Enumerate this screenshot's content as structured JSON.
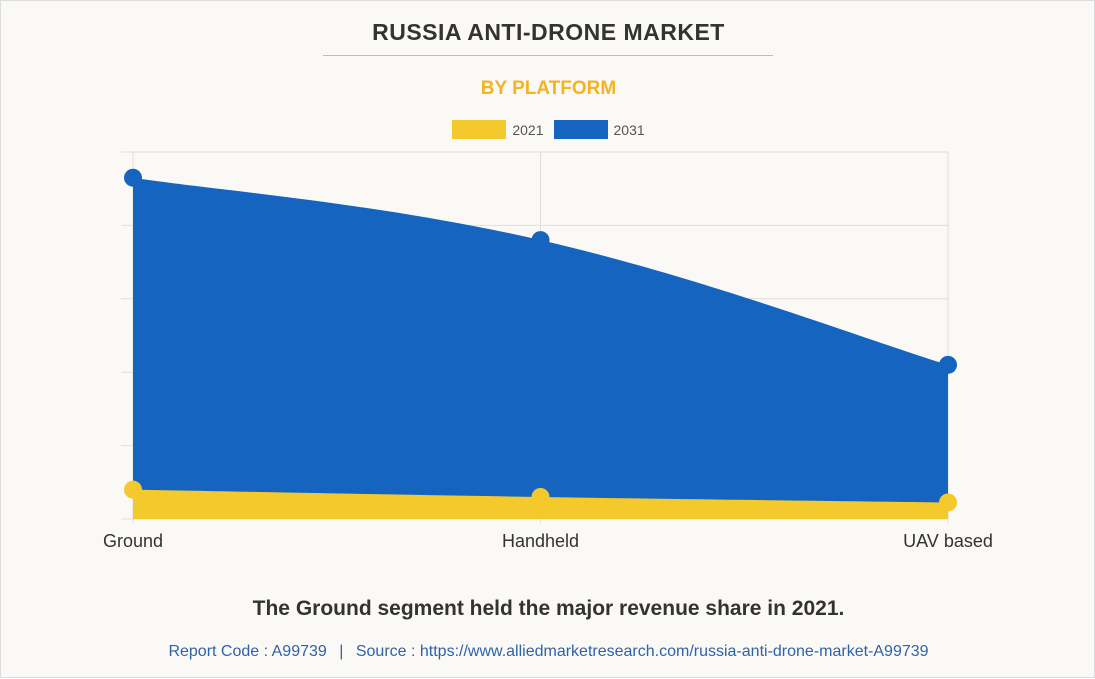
{
  "title": "RUSSIA ANTI-DRONE MARKET",
  "subtitle": "BY PLATFORM",
  "note": "The Ground segment held the major revenue share in 2021.",
  "footer": {
    "report_code": "Report Code : A99739",
    "separator": "|",
    "source": "Source : https://www.alliedmarketresearch.com/russia-anti-drone-market-A99739"
  },
  "colors": {
    "series_2021": "#f4c92c",
    "series_2031": "#1565c0",
    "subtitle": "#f5b324",
    "grid": "#dedede"
  },
  "chart_data": {
    "type": "area",
    "categories": [
      "Ground",
      "Handheld",
      "UAV based"
    ],
    "series": [
      {
        "name": "2021",
        "values": [
          8,
          6,
          4.5
        ]
      },
      {
        "name": "2031",
        "values": [
          93,
          76,
          42
        ]
      }
    ],
    "ylim": [
      0,
      100
    ],
    "ytick_labels_shown": false,
    "grid": true,
    "legend_position": "top-center"
  }
}
